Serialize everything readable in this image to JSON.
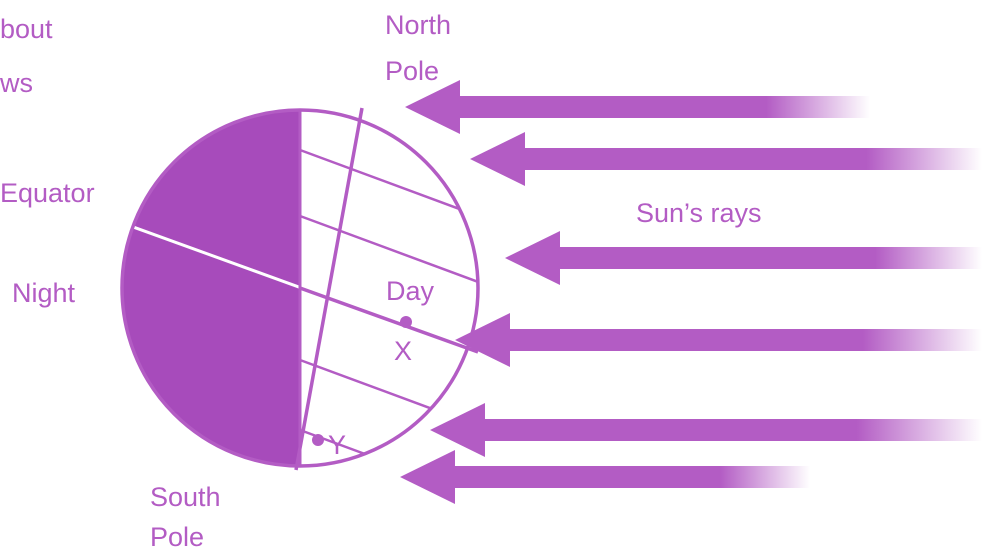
{
  "labels": {
    "top_left": [
      "bout",
      "ws"
    ],
    "north_pole": [
      "North",
      "Pole"
    ],
    "equator": "Equator",
    "night": "Night",
    "day": "Day",
    "point_x": "X",
    "point_y": "Y",
    "south_pole": [
      "South",
      "Pole"
    ],
    "sun_rays": "Sun’s rays"
  }
}
